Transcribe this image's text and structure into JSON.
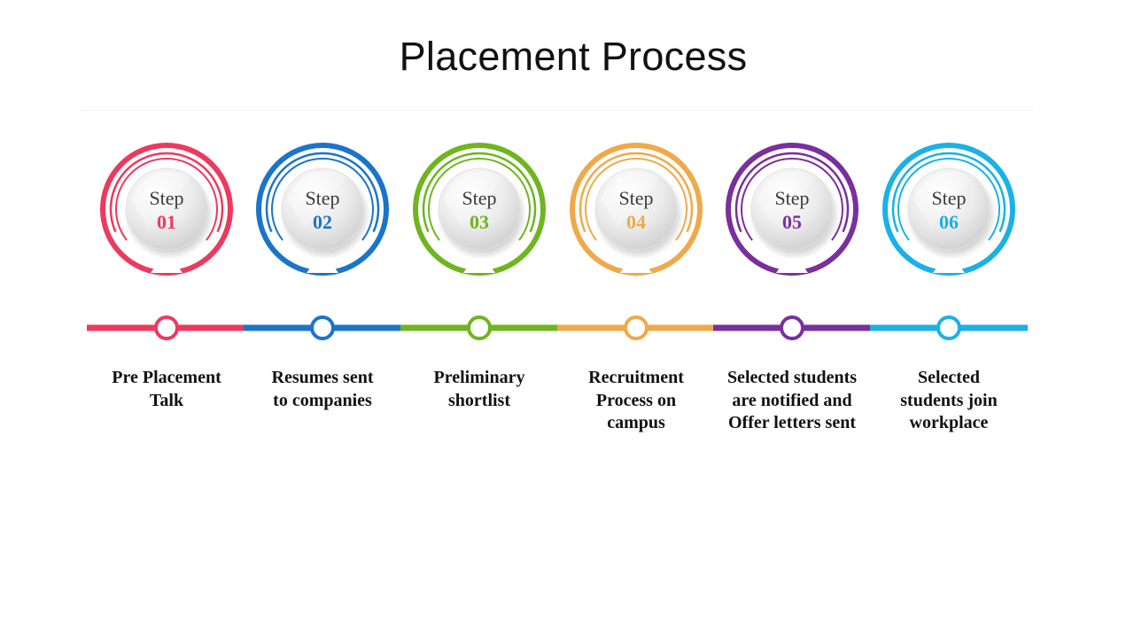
{
  "title": "Placement Process",
  "steps": [
    {
      "step_word": "Step",
      "number": "01",
      "color": "#ec3a5f",
      "label_lines": [
        "Pre Placement",
        "Talk"
      ]
    },
    {
      "step_word": "Step",
      "number": "02",
      "color": "#1c74c9",
      "label_lines": [
        "Resumes sent",
        "to companies"
      ]
    },
    {
      "step_word": "Step",
      "number": "03",
      "color": "#6fb51f",
      "label_lines": [
        "Preliminary",
        "shortlist"
      ]
    },
    {
      "step_word": "Step",
      "number": "04",
      "color": "#f0a94a",
      "label_lines": [
        "Recruitment",
        "Process on",
        "campus"
      ]
    },
    {
      "step_word": "Step",
      "number": "05",
      "color": "#7a2f9e",
      "label_lines": [
        "Selected students",
        "are notified and",
        "Offer letters sent"
      ]
    },
    {
      "step_word": "Step",
      "number": "06",
      "color": "#1bb1e6",
      "label_lines": [
        "Selected",
        "students join",
        "workplace"
      ]
    }
  ]
}
